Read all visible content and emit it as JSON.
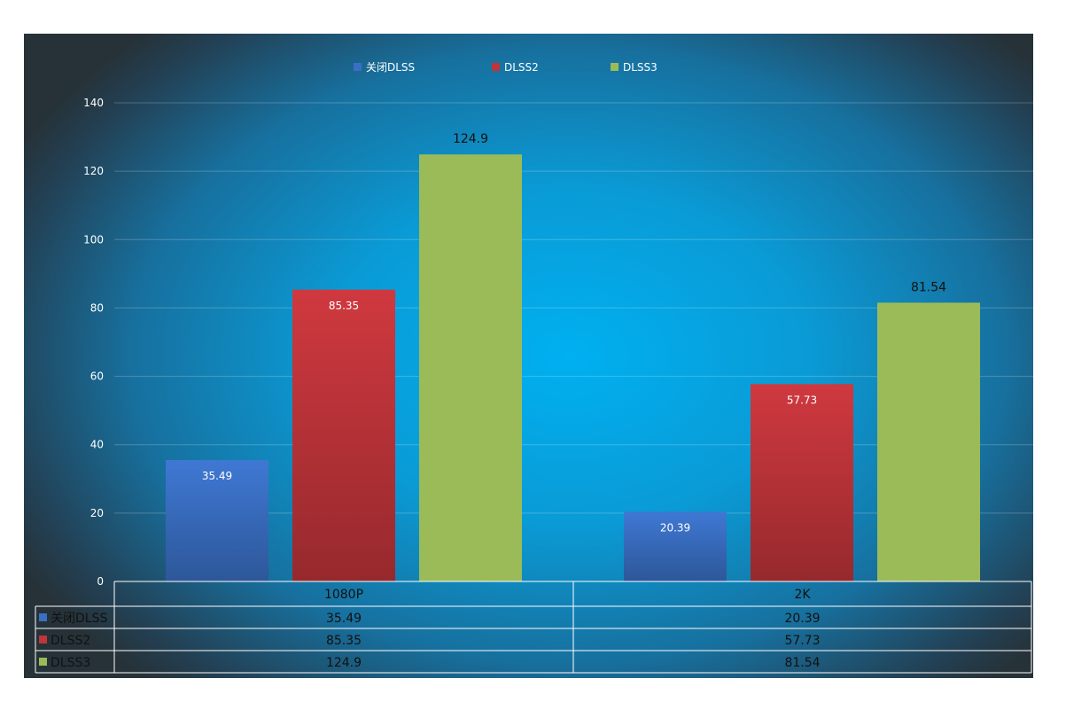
{
  "chart_data": {
    "type": "bar",
    "categories": [
      "1080P",
      "2K"
    ],
    "series": [
      {
        "name": "关闭DLSS",
        "values": [
          35.49,
          20.39
        ],
        "color": "#3a6fc4"
      },
      {
        "name": "DLSS2",
        "values": [
          85.35,
          57.73
        ],
        "color": "#c0353a"
      },
      {
        "name": "DLSS3",
        "values": [
          124.9,
          81.54
        ],
        "color": "#9bbb59"
      }
    ],
    "ylim": [
      0,
      140
    ],
    "yticks": [
      0,
      20,
      40,
      60,
      80,
      100,
      120,
      140
    ],
    "grid": true,
    "legend": "top-center",
    "data_table": true
  }
}
